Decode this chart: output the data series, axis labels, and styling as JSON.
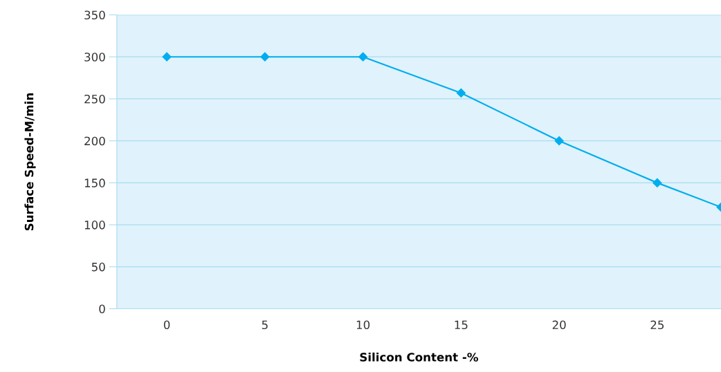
{
  "chart_data": {
    "type": "line",
    "xlabel": "Silicon Content -%",
    "ylabel": "Surface Speed-M/min",
    "xlim": [
      -2.55,
      28.25
    ],
    "xticks": [
      0,
      5,
      10,
      15,
      20,
      25
    ],
    "ylim": [
      0,
      350
    ],
    "yticks": [
      0,
      50,
      100,
      150,
      200,
      250,
      300,
      350
    ],
    "grid": "y",
    "marker": "diamond",
    "line_style": "solid",
    "series": [
      {
        "color": "#00aeef",
        "x": [
          0,
          5,
          10,
          15,
          20,
          25,
          28.25
        ],
        "values": [
          300,
          300,
          300,
          257,
          200,
          150,
          121
        ]
      }
    ]
  }
}
